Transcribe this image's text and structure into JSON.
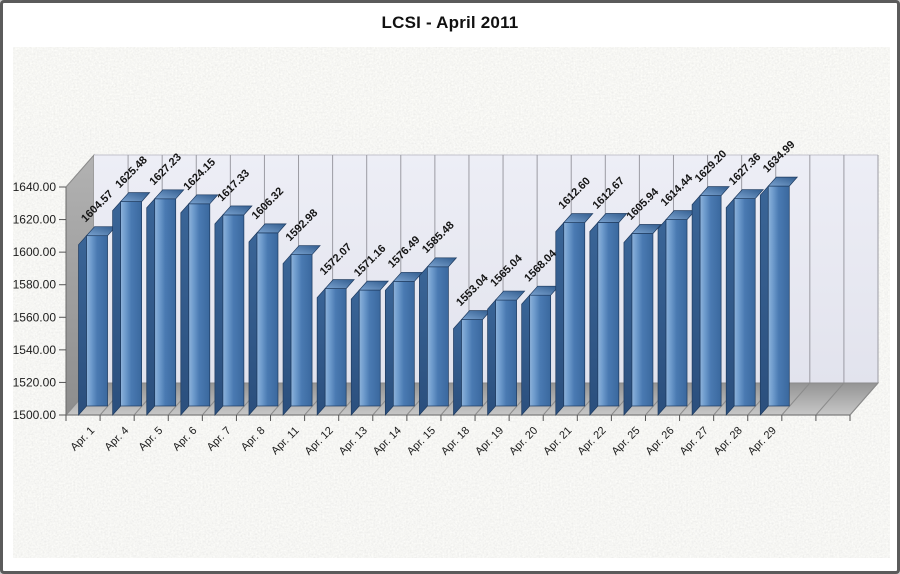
{
  "chart_data": {
    "type": "bar",
    "style": "3d-column",
    "title": "LCSI - April 2011",
    "xlabel": "",
    "ylabel": "",
    "categories": [
      "Apr. 1",
      "Apr. 4",
      "Apr. 5",
      "Apr. 6",
      "Apr. 7",
      "Apr. 8",
      "Apr. 11",
      "Apr. 12",
      "Apr. 13",
      "Apr. 14",
      "Apr. 15",
      "Apr. 18",
      "Apr. 19",
      "Apr. 20",
      "Apr. 21",
      "Apr. 22",
      "Apr. 25",
      "Apr. 26",
      "Apr. 27",
      "Apr. 28",
      "Apr. 29"
    ],
    "values": [
      1604.57,
      1625.48,
      1627.23,
      1624.15,
      1617.33,
      1606.32,
      1592.98,
      1572.07,
      1571.16,
      1576.49,
      1585.48,
      1553.04,
      1565.04,
      1568.04,
      1612.6,
      1612.67,
      1605.94,
      1614.44,
      1629.2,
      1627.36,
      1634.99
    ],
    "value_labels": [
      "1604.57",
      "1625.48",
      "1627.23",
      "1624.15",
      "1617.33",
      "1606.32",
      "1592.98",
      "1572.07",
      "1571.16",
      "1576.49",
      "1585.48",
      "1553.04",
      "1565.04",
      "1568.04",
      "1612.60",
      "1612.67",
      "1605.94",
      "1614.44",
      "1629.20",
      "1627.36",
      "1634.99"
    ],
    "ylim": [
      1500,
      1640
    ],
    "ytick_step": 20,
    "ytick_labels": [
      "1500.00",
      "1520.00",
      "1540.00",
      "1560.00",
      "1580.00",
      "1600.00",
      "1620.00",
      "1640.00"
    ],
    "empty_trailing_slots": 2,
    "legend": "none",
    "grid": "vertical-category-lines-only",
    "data_labels_rotation_deg": -45,
    "xtick_labels_rotation_deg": -45,
    "colors": {
      "bar_front": "#4a7ab2",
      "bar_front_highlight": "#8db2da",
      "bar_side": "#2f5884",
      "bar_top": "#5d88b8",
      "bar_outline": "#1d3a5f",
      "back_wall": "#e9eaf3",
      "side_wall": "#a2a2a2",
      "floor": "#adadad",
      "gridline": "#9b9ba3",
      "axis_text": "#1c1c1c",
      "plot_texture_base": "#eeeeea",
      "frame_border": "#5b5b5b",
      "title_color": "#111111"
    }
  }
}
